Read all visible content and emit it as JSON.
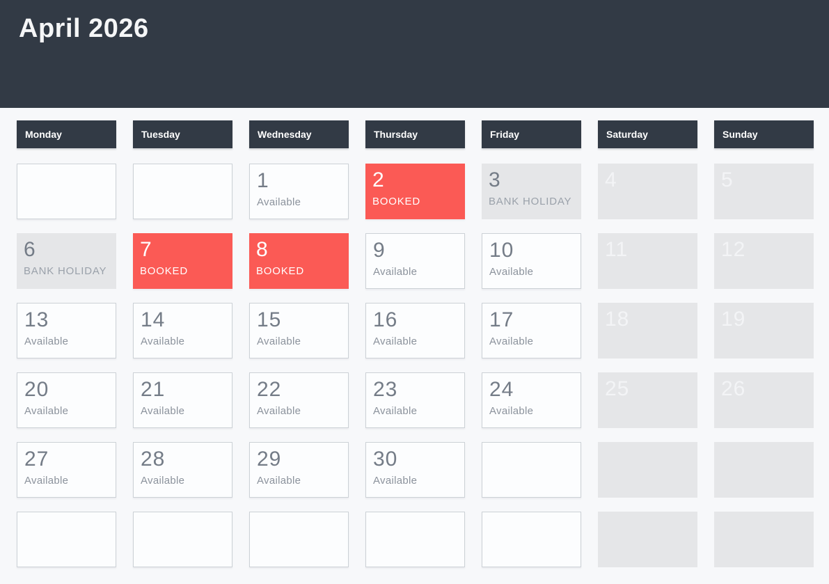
{
  "page": {
    "title": "April 2026"
  },
  "colors": {
    "header_bg": "#323a45",
    "booked_red": "#fb5a55",
    "disabled_gray": "#e5e6e8",
    "page_bg": "#f7f8fa",
    "available_text": "#8b929c"
  },
  "calendar": {
    "weekdays": [
      "Monday",
      "Tuesday",
      "Wednesday",
      "Thursday",
      "Friday",
      "Saturday",
      "Sunday"
    ],
    "statuses": {
      "available": "Available",
      "booked": "BOOKED",
      "bank_holiday": "BANK HOLIDAY"
    },
    "cells": [
      {
        "type": "empty"
      },
      {
        "type": "empty"
      },
      {
        "day": "1",
        "label": "Available",
        "type": "available"
      },
      {
        "day": "2",
        "label": "BOOKED",
        "type": "booked"
      },
      {
        "day": "3",
        "label": "BANK HOLIDAY",
        "type": "bank-holiday"
      },
      {
        "day": "4",
        "type": "weekend"
      },
      {
        "day": "5",
        "type": "weekend"
      },
      {
        "day": "6",
        "label": "BANK HOLIDAY",
        "type": "bank-holiday"
      },
      {
        "day": "7",
        "label": "BOOKED",
        "type": "booked"
      },
      {
        "day": "8",
        "label": "BOOKED",
        "type": "booked"
      },
      {
        "day": "9",
        "label": "Available",
        "type": "available"
      },
      {
        "day": "10",
        "label": "Available",
        "type": "available"
      },
      {
        "day": "11",
        "type": "weekend"
      },
      {
        "day": "12",
        "type": "weekend"
      },
      {
        "day": "13",
        "label": "Available",
        "type": "available"
      },
      {
        "day": "14",
        "label": "Available",
        "type": "available"
      },
      {
        "day": "15",
        "label": "Available",
        "type": "available"
      },
      {
        "day": "16",
        "label": "Available",
        "type": "available"
      },
      {
        "day": "17",
        "label": "Available",
        "type": "available"
      },
      {
        "day": "18",
        "type": "weekend"
      },
      {
        "day": "19",
        "type": "weekend"
      },
      {
        "day": "20",
        "label": "Available",
        "type": "available"
      },
      {
        "day": "21",
        "label": "Available",
        "type": "available"
      },
      {
        "day": "22",
        "label": "Available",
        "type": "available"
      },
      {
        "day": "23",
        "label": "Available",
        "type": "available"
      },
      {
        "day": "24",
        "label": "Available",
        "type": "available"
      },
      {
        "day": "25",
        "type": "weekend"
      },
      {
        "day": "26",
        "type": "weekend"
      },
      {
        "day": "27",
        "label": "Available",
        "type": "available"
      },
      {
        "day": "28",
        "label": "Available",
        "type": "available"
      },
      {
        "day": "29",
        "label": "Available",
        "type": "available"
      },
      {
        "day": "30",
        "label": "Available",
        "type": "available"
      },
      {
        "type": "empty"
      },
      {
        "type": "weekend-empty"
      },
      {
        "type": "weekend-empty"
      },
      {
        "type": "empty"
      },
      {
        "type": "empty"
      },
      {
        "type": "empty"
      },
      {
        "type": "empty"
      },
      {
        "type": "empty"
      },
      {
        "type": "weekend-empty"
      },
      {
        "type": "weekend-empty"
      }
    ]
  }
}
